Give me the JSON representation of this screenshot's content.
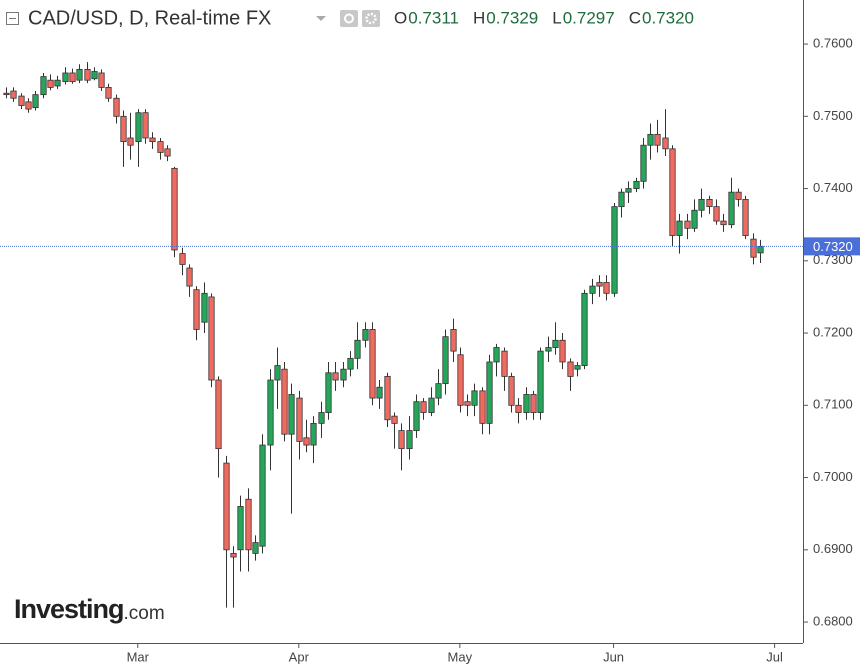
{
  "chart_data": {
    "type": "candlestick",
    "title": "CAD/USD, D, Real-time FX",
    "readout": [
      {
        "key": "O",
        "value": {
          "value": 0.7311,
          "label": "0.7311"
        }
      },
      {
        "key": "H",
        "value": {
          "value": 0.7329,
          "label": "0.7329"
        }
      },
      {
        "key": "L",
        "value": {
          "value": 0.7297,
          "label": "0.7297"
        }
      },
      {
        "key": "C",
        "value": {
          "value": 0.732,
          "label": "0.7320"
        }
      }
    ],
    "watermark": [
      "Investing",
      ".com"
    ],
    "up_color": "#26a65b",
    "down_color": "#ef6b61",
    "open": [
      0.7532,
      0.7535,
      0.7528,
      0.752,
      0.7512,
      0.753,
      0.755,
      0.7542,
      0.7548,
      0.756,
      0.755,
      0.7565,
      0.7552,
      0.756,
      0.754,
      0.7525,
      0.75,
      0.747,
      0.7465,
      0.7505,
      0.747,
      0.7465,
      0.7455,
      0.7428,
      0.731,
      0.729,
      0.726,
      0.7215,
      0.725,
      0.7135,
      0.702,
      0.6895,
      0.69,
      0.697,
      0.6895,
      0.6905,
      0.7045,
      0.7135,
      0.715,
      0.706,
      0.711,
      0.7055,
      0.7045,
      0.7075,
      0.709,
      0.7145,
      0.7135,
      0.715,
      0.7165,
      0.719,
      0.7205,
      0.711,
      0.714,
      0.7085,
      0.7065,
      0.704,
      0.7065,
      0.7105,
      0.709,
      0.711,
      0.713,
      0.7205,
      0.717,
      0.7105,
      0.71,
      0.712,
      0.7075,
      0.716,
      0.7175,
      0.714,
      0.71,
      0.709,
      0.7115,
      0.709,
      0.7175,
      0.718,
      0.719,
      0.716,
      0.715,
      0.7155,
      0.7255,
      0.727,
      0.727,
      0.7255,
      0.7375,
      0.7395,
      0.74,
      0.741,
      0.746,
      0.7475,
      0.747,
      0.7455,
      0.7335,
      0.7355,
      0.7345,
      0.737,
      0.7385,
      0.7375,
      0.7355,
      0.735,
      0.7395,
      0.7385,
      0.733,
      0.7311
    ],
    "high": [
      0.754,
      0.754,
      0.7532,
      0.7525,
      0.7535,
      0.756,
      0.7558,
      0.7556,
      0.7568,
      0.7566,
      0.7572,
      0.7575,
      0.7568,
      0.7565,
      0.7545,
      0.753,
      0.7508,
      0.7505,
      0.751,
      0.751,
      0.7478,
      0.747,
      0.746,
      0.743,
      0.7318,
      0.7295,
      0.7265,
      0.727,
      0.7255,
      0.714,
      0.703,
      0.6905,
      0.6975,
      0.6985,
      0.692,
      0.706,
      0.715,
      0.718,
      0.716,
      0.713,
      0.712,
      0.708,
      0.7085,
      0.7105,
      0.716,
      0.716,
      0.716,
      0.7175,
      0.7215,
      0.7215,
      0.7215,
      0.7135,
      0.7145,
      0.709,
      0.7075,
      0.7085,
      0.7115,
      0.711,
      0.7125,
      0.715,
      0.7205,
      0.722,
      0.718,
      0.7115,
      0.713,
      0.7125,
      0.717,
      0.7185,
      0.718,
      0.7145,
      0.711,
      0.7125,
      0.712,
      0.718,
      0.7195,
      0.7215,
      0.72,
      0.7165,
      0.716,
      0.726,
      0.7275,
      0.728,
      0.728,
      0.738,
      0.74,
      0.741,
      0.7415,
      0.747,
      0.749,
      0.7495,
      0.751,
      0.746,
      0.7365,
      0.7365,
      0.7385,
      0.74,
      0.739,
      0.7385,
      0.7365,
      0.7415,
      0.74,
      0.739,
      0.7338,
      0.7329
    ],
    "low": [
      0.7525,
      0.752,
      0.751,
      0.7505,
      0.7508,
      0.7525,
      0.7536,
      0.7538,
      0.7544,
      0.7545,
      0.7546,
      0.7546,
      0.755,
      0.7535,
      0.752,
      0.749,
      0.743,
      0.744,
      0.743,
      0.7462,
      0.7455,
      0.744,
      0.7438,
      0.7305,
      0.728,
      0.725,
      0.719,
      0.72,
      0.7125,
      0.7,
      0.682,
      0.682,
      0.687,
      0.687,
      0.6885,
      0.6895,
      0.701,
      0.7095,
      0.705,
      0.695,
      0.7025,
      0.7035,
      0.702,
      0.7055,
      0.708,
      0.712,
      0.7125,
      0.714,
      0.715,
      0.718,
      0.71,
      0.7095,
      0.707,
      0.704,
      0.701,
      0.7025,
      0.7055,
      0.708,
      0.7085,
      0.71,
      0.7115,
      0.716,
      0.709,
      0.7085,
      0.7085,
      0.706,
      0.706,
      0.714,
      0.712,
      0.709,
      0.7075,
      0.708,
      0.708,
      0.708,
      0.716,
      0.717,
      0.715,
      0.712,
      0.714,
      0.715,
      0.724,
      0.725,
      0.7245,
      0.725,
      0.736,
      0.738,
      0.7395,
      0.74,
      0.744,
      0.745,
      0.7445,
      0.732,
      0.731,
      0.733,
      0.734,
      0.736,
      0.7365,
      0.735,
      0.734,
      0.7345,
      0.7375,
      0.733,
      0.7295,
      0.7297
    ],
    "close": [
      0.753,
      0.7525,
      0.7515,
      0.751,
      0.753,
      0.7555,
      0.754,
      0.755,
      0.756,
      0.7548,
      0.7565,
      0.755,
      0.7562,
      0.754,
      0.7525,
      0.75,
      0.7465,
      0.746,
      0.7505,
      0.747,
      0.7465,
      0.745,
      0.7445,
      0.7315,
      0.7295,
      0.7265,
      0.7205,
      0.7255,
      0.7135,
      0.704,
      0.69,
      0.689,
      0.696,
      0.69,
      0.691,
      0.7045,
      0.7135,
      0.7155,
      0.706,
      0.7115,
      0.705,
      0.7045,
      0.7075,
      0.709,
      0.7145,
      0.7135,
      0.715,
      0.7165,
      0.719,
      0.7205,
      0.711,
      0.7125,
      0.708,
      0.7075,
      0.704,
      0.7065,
      0.7105,
      0.709,
      0.711,
      0.713,
      0.7195,
      0.7175,
      0.71,
      0.71,
      0.712,
      0.7075,
      0.716,
      0.718,
      0.714,
      0.71,
      0.709,
      0.7115,
      0.709,
      0.7175,
      0.718,
      0.719,
      0.716,
      0.714,
      0.7155,
      0.7255,
      0.7265,
      0.7265,
      0.7255,
      0.7375,
      0.7395,
      0.74,
      0.741,
      0.746,
      0.7475,
      0.746,
      0.7455,
      0.7335,
      0.7355,
      0.7345,
      0.737,
      0.7385,
      0.7375,
      0.7355,
      0.735,
      0.7395,
      0.7385,
      0.7335,
      0.7305,
      0.732
    ],
    "xlim": [
      -0.82,
      108.88
    ],
    "xticks": [
      {
        "value": 18,
        "label": "Mar"
      },
      {
        "value": 40,
        "label": "Apr"
      },
      {
        "value": 62,
        "label": "May"
      },
      {
        "value": 83,
        "label": "Jun"
      },
      {
        "value": 105,
        "label": "Jul"
      }
    ],
    "ylim": [
      0.6771,
      0.7661
    ],
    "yticks": [
      {
        "value": 0.68,
        "label": "0.6800"
      },
      {
        "value": 0.69,
        "label": "0.6900"
      },
      {
        "value": 0.7,
        "label": "0.7000"
      },
      {
        "value": 0.71,
        "label": "0.7100"
      },
      {
        "value": 0.72,
        "label": "0.7200"
      },
      {
        "value": 0.73,
        "label": "0.7300"
      },
      {
        "value": 0.74,
        "label": "0.7400"
      },
      {
        "value": 0.75,
        "label": "0.7500"
      },
      {
        "value": 0.76,
        "label": "0.7600"
      }
    ],
    "last_price": {
      "value": 0.732,
      "label": "0.7320",
      "color": "#4a6fd8"
    }
  }
}
